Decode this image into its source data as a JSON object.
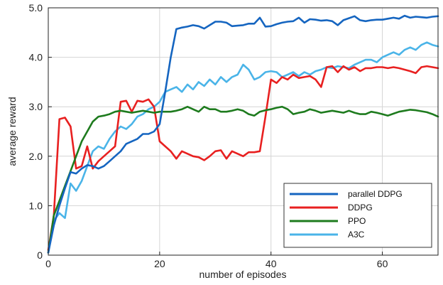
{
  "chart_data": {
    "type": "line",
    "title": "",
    "xlabel": "number of episodes",
    "ylabel": "average reward",
    "xlim": [
      0,
      70
    ],
    "ylim": [
      0,
      5
    ],
    "xticks": [
      0,
      20,
      40,
      60
    ],
    "yticks": [
      0,
      1,
      2,
      3,
      4,
      5
    ],
    "xtick_labels": [
      "0",
      "20",
      "40",
      "60"
    ],
    "ytick_labels": [
      "0",
      "1.0",
      "2.0",
      "3.0",
      "4.0",
      "5.0"
    ],
    "grid": true,
    "legend_position": "bottom-right",
    "series": [
      {
        "name": "parallel DDPG",
        "color": "#1565c0",
        "x": [
          0,
          1,
          2,
          3,
          4,
          5,
          6,
          7,
          8,
          9,
          10,
          11,
          12,
          13,
          14,
          15,
          16,
          17,
          18,
          19,
          20,
          21,
          22,
          23,
          24,
          25,
          26,
          27,
          28,
          29,
          30,
          31,
          32,
          33,
          34,
          35,
          36,
          37,
          38,
          39,
          40,
          41,
          42,
          43,
          44,
          45,
          46,
          47,
          48,
          49,
          50,
          51,
          52,
          53,
          54,
          55,
          56,
          57,
          58,
          59,
          60,
          61,
          62,
          63,
          64,
          65,
          66,
          67,
          68,
          69,
          70
        ],
        "values": [
          0.05,
          0.6,
          1.0,
          1.35,
          1.68,
          1.65,
          1.75,
          1.82,
          1.8,
          1.75,
          1.8,
          1.9,
          2.0,
          2.1,
          2.25,
          2.3,
          2.35,
          2.45,
          2.45,
          2.5,
          2.65,
          3.3,
          4.0,
          4.57,
          4.6,
          4.62,
          4.65,
          4.63,
          4.58,
          4.65,
          4.72,
          4.72,
          4.7,
          4.63,
          4.64,
          4.65,
          4.68,
          4.68,
          4.8,
          4.62,
          4.63,
          4.67,
          4.7,
          4.72,
          4.73,
          4.8,
          4.7,
          4.77,
          4.76,
          4.74,
          4.75,
          4.73,
          4.65,
          4.75,
          4.79,
          4.83,
          4.75,
          4.73,
          4.75,
          4.76,
          4.76,
          4.78,
          4.8,
          4.78,
          4.84,
          4.8,
          4.82,
          4.81,
          4.8,
          4.82,
          4.83
        ]
      },
      {
        "name": "DDPG",
        "color": "#e82020",
        "x": [
          0,
          1,
          2,
          3,
          4,
          5,
          6,
          7,
          8,
          9,
          10,
          11,
          12,
          13,
          14,
          15,
          16,
          17,
          18,
          19,
          20,
          21,
          22,
          23,
          24,
          25,
          26,
          27,
          28,
          29,
          30,
          31,
          32,
          33,
          34,
          35,
          36,
          37,
          38,
          39,
          40,
          41,
          42,
          43,
          44,
          45,
          46,
          47,
          48,
          49,
          50,
          51,
          52,
          53,
          54,
          55,
          56,
          57,
          58,
          59,
          60,
          61,
          62,
          63,
          64,
          65,
          66,
          67,
          68,
          69,
          70
        ],
        "values": [
          0.1,
          0.8,
          2.75,
          2.78,
          2.6,
          1.75,
          1.8,
          2.2,
          1.75,
          1.9,
          2.0,
          2.1,
          2.2,
          3.1,
          3.12,
          2.9,
          3.12,
          3.1,
          3.15,
          3.0,
          2.3,
          2.2,
          2.1,
          1.95,
          2.1,
          2.05,
          2.0,
          1.98,
          1.92,
          2.0,
          2.1,
          2.12,
          1.95,
          2.1,
          2.05,
          2.0,
          2.08,
          2.08,
          2.1,
          2.8,
          3.55,
          3.48,
          3.6,
          3.55,
          3.65,
          3.58,
          3.6,
          3.62,
          3.55,
          3.4,
          3.8,
          3.82,
          3.7,
          3.82,
          3.75,
          3.8,
          3.72,
          3.78,
          3.78,
          3.8,
          3.8,
          3.78,
          3.8,
          3.78,
          3.75,
          3.72,
          3.68,
          3.8,
          3.82,
          3.8,
          3.78
        ]
      },
      {
        "name": "PPO",
        "color": "#1e7b1e",
        "x": [
          0,
          1,
          2,
          3,
          4,
          5,
          6,
          7,
          8,
          9,
          10,
          11,
          12,
          13,
          14,
          15,
          16,
          17,
          18,
          19,
          20,
          21,
          22,
          23,
          24,
          25,
          26,
          27,
          28,
          29,
          30,
          31,
          32,
          33,
          34,
          35,
          36,
          37,
          38,
          39,
          40,
          41,
          42,
          43,
          44,
          45,
          46,
          47,
          48,
          49,
          50,
          51,
          52,
          53,
          54,
          55,
          56,
          57,
          58,
          59,
          60,
          61,
          62,
          63,
          64,
          65,
          66,
          67,
          68,
          69,
          70
        ],
        "values": [
          0.05,
          0.8,
          1.1,
          1.4,
          1.7,
          2.0,
          2.3,
          2.5,
          2.7,
          2.8,
          2.82,
          2.85,
          2.9,
          2.92,
          2.9,
          2.88,
          2.9,
          2.92,
          2.9,
          2.88,
          2.9,
          2.9,
          2.9,
          2.92,
          2.95,
          3.0,
          2.95,
          2.9,
          3.0,
          2.95,
          2.95,
          2.9,
          2.9,
          2.92,
          2.95,
          2.92,
          2.85,
          2.82,
          2.9,
          2.93,
          2.95,
          2.98,
          3.0,
          2.95,
          2.85,
          2.88,
          2.9,
          2.95,
          2.92,
          2.88,
          2.9,
          2.92,
          2.9,
          2.88,
          2.92,
          2.88,
          2.85,
          2.85,
          2.9,
          2.88,
          2.85,
          2.82,
          2.86,
          2.9,
          2.92,
          2.94,
          2.93,
          2.91,
          2.89,
          2.85,
          2.8
        ]
      },
      {
        "name": "A3C",
        "color": "#4ab4e8",
        "x": [
          0,
          1,
          2,
          3,
          4,
          5,
          6,
          7,
          8,
          9,
          10,
          11,
          12,
          13,
          14,
          15,
          16,
          17,
          18,
          19,
          20,
          21,
          22,
          23,
          24,
          25,
          26,
          27,
          28,
          29,
          30,
          31,
          32,
          33,
          34,
          35,
          36,
          37,
          38,
          39,
          40,
          41,
          42,
          43,
          44,
          45,
          46,
          47,
          48,
          49,
          50,
          51,
          52,
          53,
          54,
          55,
          56,
          57,
          58,
          59,
          60,
          61,
          62,
          63,
          64,
          65,
          66,
          67,
          68,
          69,
          70
        ],
        "values": [
          0.05,
          0.7,
          0.85,
          0.75,
          1.45,
          1.3,
          1.5,
          1.8,
          2.1,
          2.2,
          2.15,
          2.35,
          2.5,
          2.6,
          2.55,
          2.65,
          2.8,
          2.85,
          2.95,
          3.0,
          3.1,
          3.3,
          3.35,
          3.4,
          3.3,
          3.45,
          3.35,
          3.5,
          3.42,
          3.55,
          3.45,
          3.6,
          3.5,
          3.6,
          3.65,
          3.85,
          3.75,
          3.55,
          3.6,
          3.7,
          3.72,
          3.7,
          3.6,
          3.65,
          3.7,
          3.62,
          3.7,
          3.65,
          3.72,
          3.75,
          3.8,
          3.78,
          3.82,
          3.8,
          3.78,
          3.85,
          3.9,
          3.95,
          3.95,
          3.9,
          4.0,
          4.05,
          4.1,
          4.05,
          4.15,
          4.2,
          4.15,
          4.25,
          4.3,
          4.25,
          4.22
        ]
      }
    ]
  }
}
